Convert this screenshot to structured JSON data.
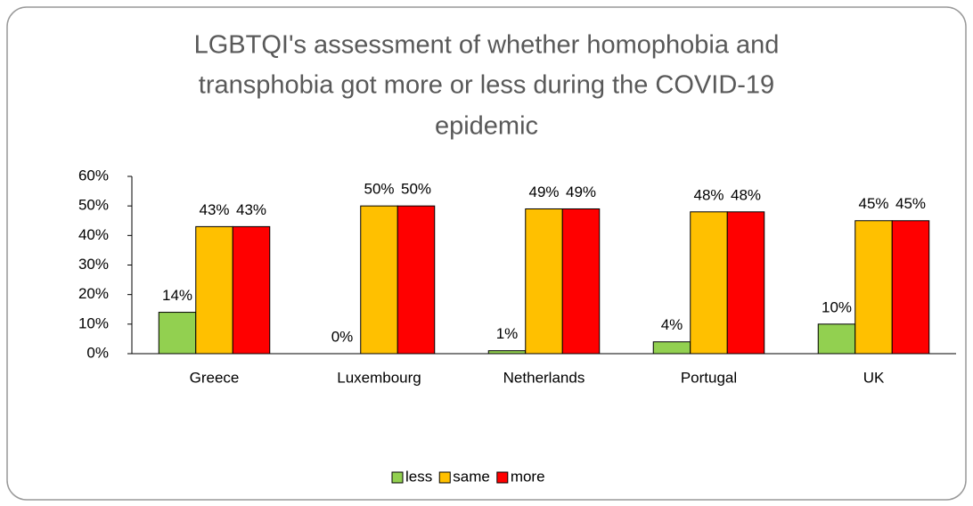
{
  "chart_data": {
    "type": "bar",
    "title": [
      "LGBTQI's assessment of whether homophobia and",
      "transphobia got more or less during the COVID-19",
      "epidemic"
    ],
    "categories": [
      "Greece",
      "Luxembourg",
      "Netherlands",
      "Portugal",
      "UK"
    ],
    "series": [
      {
        "name": "less",
        "color": "#92d050",
        "values": [
          14,
          0,
          1,
          4,
          10
        ],
        "value_labels": [
          "14%",
          "0%",
          "1%",
          "4%",
          "10%"
        ]
      },
      {
        "name": "same",
        "color": "#ffc000",
        "values": [
          43,
          50,
          49,
          48,
          45
        ],
        "value_labels": [
          "43%",
          "50%",
          "49%",
          "48%",
          "45%"
        ]
      },
      {
        "name": "more",
        "color": "#ff0000",
        "values": [
          43,
          50,
          49,
          48,
          45
        ],
        "value_labels": [
          "43%",
          "50%",
          "49%",
          "48%",
          "45%"
        ]
      }
    ],
    "ylim": [
      0,
      60
    ],
    "yticks": [
      {
        "value": 0,
        "label": "0%"
      },
      {
        "value": 10,
        "label": "10%"
      },
      {
        "value": 20,
        "label": "20%"
      },
      {
        "value": 30,
        "label": "30%"
      },
      {
        "value": 40,
        "label": "40%"
      },
      {
        "value": 50,
        "label": "50%"
      },
      {
        "value": 60,
        "label": "60%"
      }
    ],
    "grid": false,
    "legend": "bottom"
  }
}
